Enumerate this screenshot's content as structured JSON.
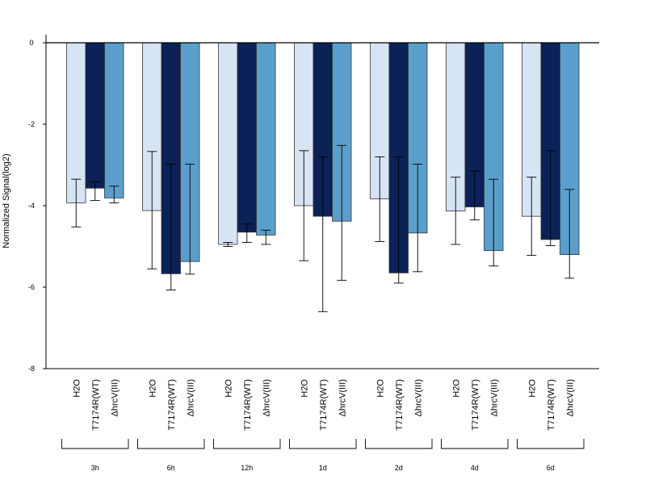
{
  "chart_data": {
    "type": "bar",
    "title": "",
    "xlabel": "",
    "ylabel": "Normalized Signal(log2)",
    "ylim": [
      -8,
      0.2
    ],
    "yticks": [
      "0",
      "-2",
      "-4",
      "-6",
      "-8"
    ],
    "grid": false,
    "legend": "none",
    "groups": [
      "3h",
      "6h",
      "12h",
      "1d",
      "2d",
      "4d",
      "6d"
    ],
    "series": [
      {
        "label": "H2O",
        "color": "#D6E4F4",
        "values": [
          -3.93,
          -4.12,
          -4.95,
          -4.0,
          -3.83,
          -4.13,
          -4.26
        ],
        "err_low": [
          -4.52,
          -5.55,
          -5.0,
          -5.35,
          -4.88,
          -4.95,
          -5.22
        ],
        "err_high": [
          -3.35,
          -2.67,
          -4.9,
          -2.65,
          -2.8,
          -3.3,
          -3.3
        ]
      },
      {
        "label": "T7174R(WT)",
        "color": "#0A2257",
        "values": [
          -3.57,
          -5.67,
          -4.65,
          -4.26,
          -5.65,
          -4.03,
          -4.83
        ],
        "err_low": [
          -3.87,
          -6.07,
          -4.9,
          -6.6,
          -5.9,
          -4.35,
          -4.98
        ],
        "err_high": [
          -3.42,
          -2.98,
          -4.45,
          -2.8,
          -2.8,
          -3.15,
          -2.65
        ]
      },
      {
        "label": "ΔhrcV(III)",
        "color": "#5A9FCC",
        "values": [
          -3.81,
          -5.37,
          -4.72,
          -4.38,
          -4.67,
          -5.1,
          -5.2
        ],
        "err_low": [
          -3.93,
          -5.68,
          -4.95,
          -5.83,
          -5.62,
          -5.48,
          -5.78
        ],
        "err_high": [
          -3.52,
          -2.98,
          -4.6,
          -2.52,
          -2.98,
          -3.35,
          -3.6
        ]
      }
    ]
  }
}
